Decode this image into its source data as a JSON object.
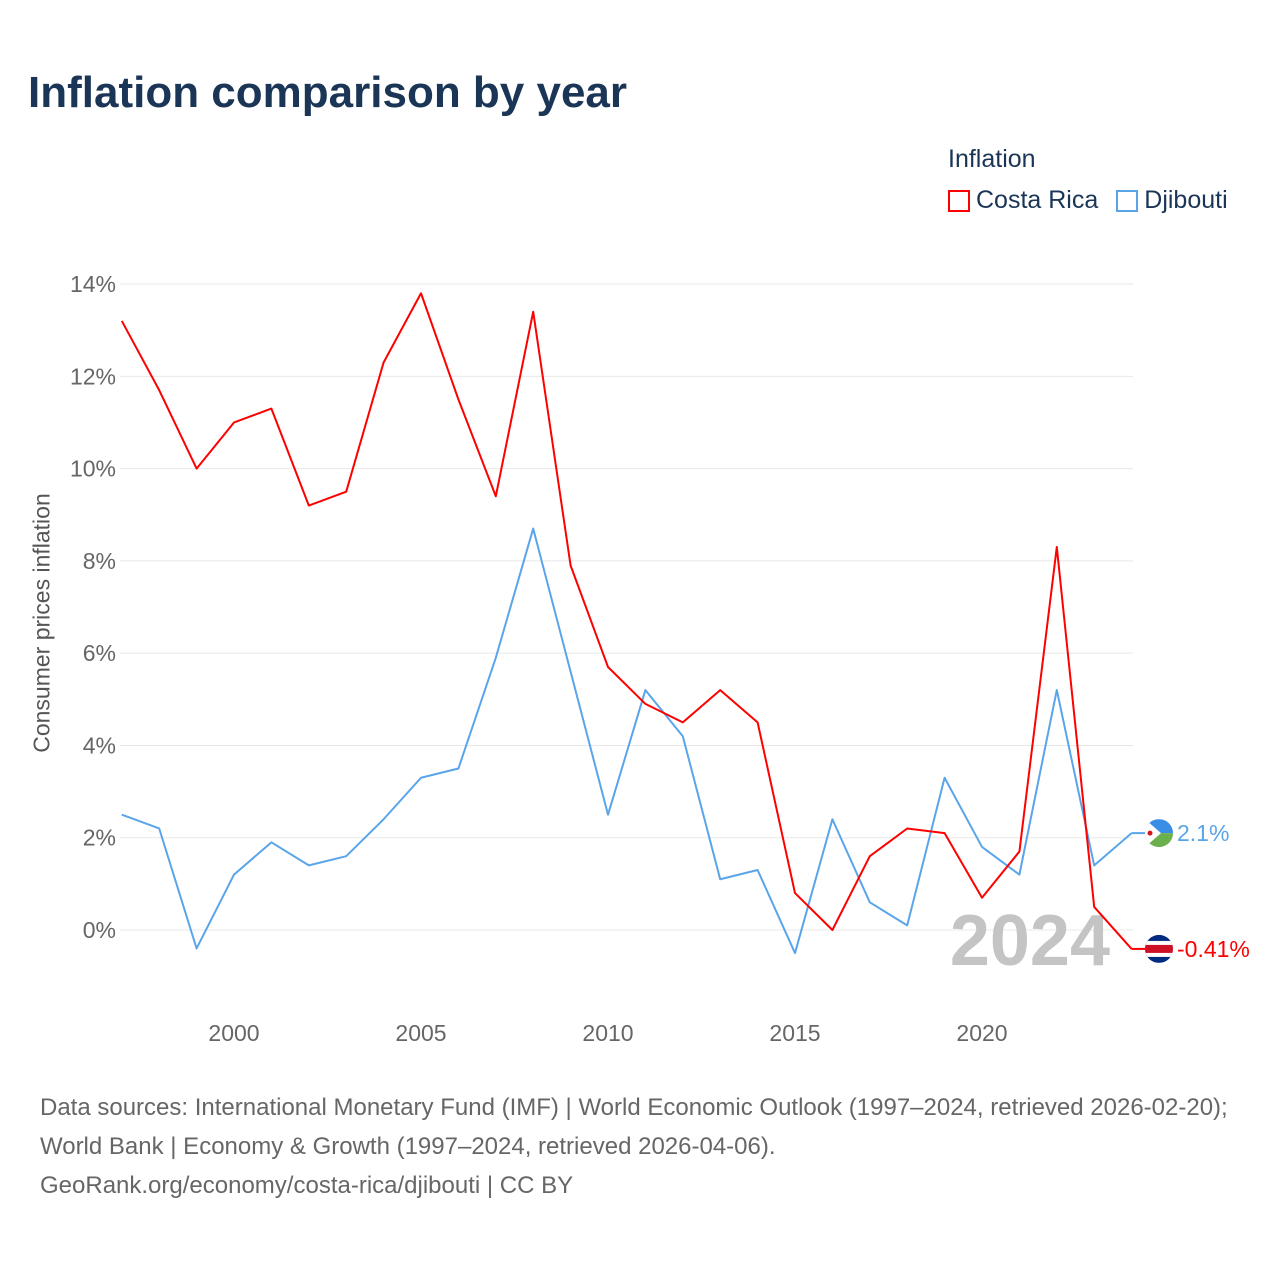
{
  "title": "Inflation comparison by year",
  "legend": {
    "title": "Inflation",
    "items": [
      {
        "label": "Costa Rica",
        "color": "#ff0000"
      },
      {
        "label": "Djibouti",
        "color": "#5aa5ea"
      }
    ]
  },
  "chart_data": {
    "type": "line",
    "title": "Inflation comparison by year",
    "ylabel": "Consumer prices inflation",
    "xlabel": "",
    "xlim": [
      1997,
      2024
    ],
    "ylim": [
      -1.5,
      14
    ],
    "x_ticks": [
      2000,
      2005,
      2010,
      2015,
      2020
    ],
    "y_ticks": [
      0,
      2,
      4,
      6,
      8,
      10,
      12,
      14
    ],
    "y_tick_labels": [
      "0%",
      "2%",
      "4%",
      "6%",
      "8%",
      "10%",
      "12%",
      "14%"
    ],
    "grid": true,
    "legend_position": "top-right",
    "x": [
      1997,
      1998,
      1999,
      2000,
      2001,
      2002,
      2003,
      2004,
      2005,
      2006,
      2007,
      2008,
      2009,
      2010,
      2011,
      2012,
      2013,
      2014,
      2015,
      2016,
      2017,
      2018,
      2019,
      2020,
      2021,
      2022,
      2023,
      2024
    ],
    "series": [
      {
        "name": "Costa Rica",
        "color": "#ff0000",
        "end_label": "-0.41%",
        "values": [
          13.2,
          11.7,
          10.0,
          11.0,
          11.3,
          9.2,
          9.5,
          12.3,
          13.8,
          11.5,
          9.4,
          13.4,
          7.9,
          5.7,
          4.9,
          4.5,
          5.2,
          4.5,
          0.8,
          0.0,
          1.6,
          2.2,
          2.1,
          0.7,
          1.7,
          8.3,
          0.5,
          -0.41
        ]
      },
      {
        "name": "Djibouti",
        "color": "#5aa5ea",
        "end_label": "2.1%",
        "values": [
          2.5,
          2.2,
          -0.4,
          1.2,
          1.9,
          1.4,
          1.6,
          2.4,
          3.3,
          3.5,
          5.9,
          8.7,
          5.6,
          2.5,
          5.2,
          4.2,
          1.1,
          1.3,
          -0.5,
          2.4,
          0.6,
          0.1,
          3.3,
          1.8,
          1.2,
          5.2,
          1.4,
          2.1
        ]
      }
    ],
    "annotation": "2024"
  },
  "footer": {
    "line1": "Data sources: International Monetary Fund (IMF) | World Economic Outlook (1997–2024, retrieved 2026-02-20); World Bank | Economy & Growth (1997–2024, retrieved 2026-04-06).",
    "line2": "GeoRank.org/economy/costa-rica/djibouti | CC BY"
  }
}
